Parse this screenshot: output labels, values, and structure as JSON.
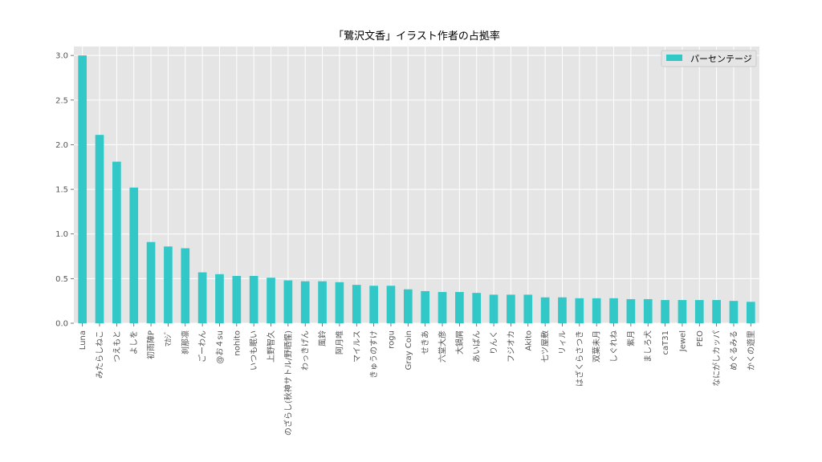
{
  "chart_data": {
    "type": "bar",
    "title": "「鷺沢文香」イラスト作者の占拠率",
    "xlabel": "",
    "ylabel": "",
    "ylim": [
      0,
      3.1
    ],
    "yticks": [
      "0.0",
      "0.5",
      "1.0",
      "1.5",
      "2.0",
      "2.5",
      "3.0"
    ],
    "grid": true,
    "legend_position": "top-right",
    "bar_color": "#33c8c8",
    "background_color": "#e5e5e5",
    "categories": [
      "Luna",
      "みたらしねこ",
      "つえもと",
      "よしを",
      "初雨陣P",
      "ﾏｶｼﾞ",
      "刹那凛",
      "ごーわん",
      "@お４su",
      "nohito",
      "いつも眠い",
      "上野智久",
      "のざらし(秋神サトル/野晒惺)",
      "わっきげん",
      "風鈴",
      "阿月唯",
      "マイルス",
      "きゅうのすけ",
      "rogu",
      "Gray Coin",
      "せきあ",
      "六堂大彦",
      "大鍋屑",
      "あいばん",
      "りんく",
      "フジオカ",
      "Akito",
      "七ツ屋敷",
      "リィル",
      "はざくらさつき",
      "双葉未月",
      "しぐれね",
      "紫月",
      "ましろ犬",
      "caT31",
      "Jewel",
      "PEO",
      "なにがしカッパ",
      "めぐるみる",
      "かくの遊里"
    ],
    "series": [
      {
        "name": "パーセンテージ",
        "values": [
          3.0,
          2.11,
          1.81,
          1.52,
          0.91,
          0.86,
          0.84,
          0.57,
          0.55,
          0.53,
          0.53,
          0.51,
          0.48,
          0.47,
          0.47,
          0.46,
          0.43,
          0.42,
          0.42,
          0.38,
          0.36,
          0.35,
          0.35,
          0.34,
          0.32,
          0.32,
          0.32,
          0.29,
          0.29,
          0.28,
          0.28,
          0.28,
          0.27,
          0.27,
          0.26,
          0.26,
          0.26,
          0.26,
          0.25,
          0.24
        ]
      }
    ]
  }
}
